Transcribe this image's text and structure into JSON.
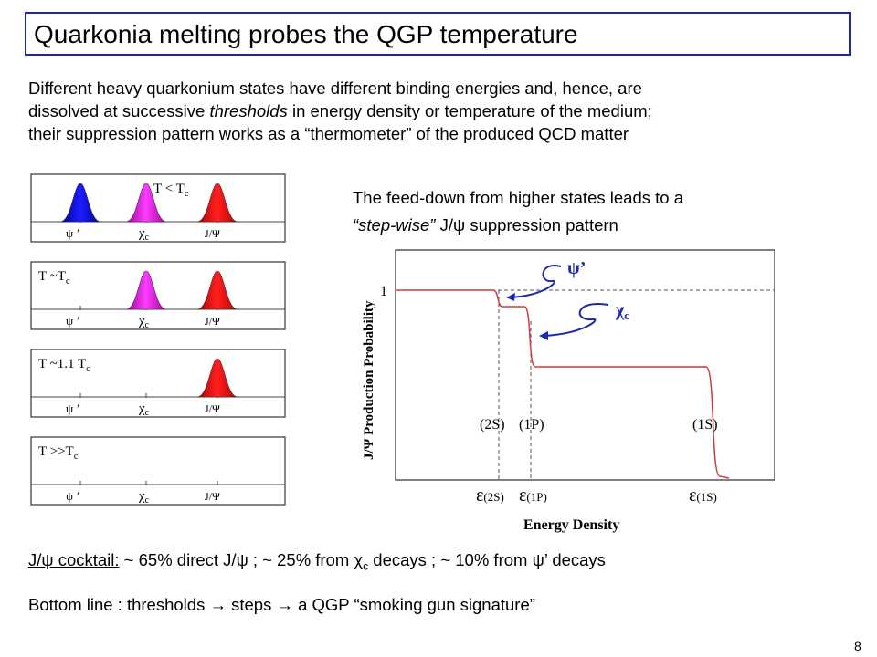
{
  "title": "Quarkonia melting probes the QGP temperature",
  "intro": {
    "line1": "Different heavy quarkonium states have different binding energies and, hence, are",
    "line2_a": "dissolved at successive ",
    "line2_b": "thresholds",
    "line2_c": " in energy density or temperature of the medium;",
    "line3": "their suppression pattern works as a “thermometer” of the produced QCD matter"
  },
  "feeddown": {
    "line1": "The feed-down from higher states leads to a",
    "line2_a": "“step-wise”",
    "line2_b": " J/ψ suppression pattern"
  },
  "panels": [
    {
      "label": "T < T",
      "sub": "c",
      "peaks": [
        "blue",
        "magenta",
        "red"
      ]
    },
    {
      "label": "T ~T",
      "sub": "c",
      "peaks": [
        "magenta",
        "red"
      ]
    },
    {
      "label": "T ~1.1 T",
      "sub": "c",
      "peaks": [
        "red"
      ]
    },
    {
      "label": "T >>T",
      "sub": "c",
      "peaks": []
    }
  ],
  "panel_axis": {
    "psi_prime": "ψ ’",
    "chi": "χ",
    "chi_sub": "c",
    "jpsi": "J/Ψ"
  },
  "plot": {
    "ylabel": "J/Ψ Production Probability",
    "xlabel": "Energy Density",
    "y_one": "1",
    "state_2s": "(2S)",
    "state_1p": "(1P)",
    "state_1s": "(1S)",
    "eps": "ε",
    "eps_2s": "(2S)",
    "eps_1p": "(1P)",
    "eps_1s": "(1S)",
    "ann_psi": "ψ’",
    "ann_chi": "χ",
    "ann_chi_sub": "c"
  },
  "cocktail": {
    "label": "J/ψ cocktail:",
    "text": " ~ 65% direct J/ψ ; ~ 25% from χ",
    "sub": "c",
    "text2": " decays ; ~ 10% from ψ’ decays"
  },
  "bottomline": "Bottom line : thresholds → steps → a QGP “smoking gun signature”",
  "page_number": "8",
  "colors": {
    "title_border": "#1b2aa8",
    "curve": "#d03a3a",
    "arrow": "#1b2aa8"
  }
}
